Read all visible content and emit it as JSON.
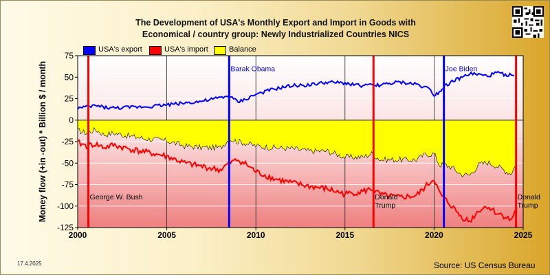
{
  "title_line1": "The Development of USA's Monthly Export and Import in Goods with",
  "title_line2": "Economical / country group: Newly Industrialized Countries NICS",
  "ylabel": "Money flow (+in -out) * Billion $ / month",
  "date_stamp": "17.4.2025",
  "source": "Source: US Census Bureau",
  "legend": [
    {
      "label": "USA's export",
      "color": "#0000ff"
    },
    {
      "label": "USA's import",
      "color": "#ff0000"
    },
    {
      "label": "Balance",
      "color": "#ffff00"
    }
  ],
  "chart_data": {
    "type": "area",
    "xlim": [
      2000,
      2025
    ],
    "ylim": [
      -125,
      75
    ],
    "x_ticks": [
      2000,
      2005,
      2010,
      2015,
      2020,
      2025
    ],
    "y_ticks": [
      75,
      50,
      25,
      0,
      -25,
      -50,
      -75,
      -100,
      -125
    ],
    "grid": true,
    "series": [
      {
        "name": "USA's export",
        "color": "#0000ff",
        "points": [
          [
            2000,
            14
          ],
          [
            2000.5,
            15
          ],
          [
            2001,
            17
          ],
          [
            2001.5,
            15
          ],
          [
            2002,
            14
          ],
          [
            2003,
            15
          ],
          [
            2004,
            16
          ],
          [
            2005,
            18
          ],
          [
            2006,
            20
          ],
          [
            2007,
            22
          ],
          [
            2008,
            26
          ],
          [
            2008.5,
            28
          ],
          [
            2009,
            21
          ],
          [
            2009.5,
            25
          ],
          [
            2010,
            30
          ],
          [
            2011,
            36
          ],
          [
            2012,
            40
          ],
          [
            2013,
            41
          ],
          [
            2014,
            44
          ],
          [
            2015,
            43
          ],
          [
            2016,
            40
          ],
          [
            2017,
            41
          ],
          [
            2018,
            44
          ],
          [
            2019,
            42
          ],
          [
            2019.8,
            36
          ],
          [
            2020,
            29
          ],
          [
            2020.3,
            33
          ],
          [
            2020.6,
            40
          ],
          [
            2021,
            45
          ],
          [
            2021.5,
            49
          ],
          [
            2022,
            54
          ],
          [
            2022.5,
            53
          ],
          [
            2023,
            51
          ],
          [
            2023.5,
            55
          ],
          [
            2024,
            53
          ],
          [
            2024.5,
            52
          ]
        ]
      },
      {
        "name": "USA's import",
        "color": "#ff0000",
        "points": [
          [
            2000,
            -26
          ],
          [
            2000.5,
            -30
          ],
          [
            2001,
            -28
          ],
          [
            2001.5,
            -32
          ],
          [
            2002,
            -29
          ],
          [
            2003,
            -34
          ],
          [
            2004,
            -38
          ],
          [
            2005,
            -42
          ],
          [
            2006,
            -50
          ],
          [
            2007,
            -54
          ],
          [
            2008,
            -58
          ],
          [
            2008.5,
            -50
          ],
          [
            2009,
            -46
          ],
          [
            2009.5,
            -52
          ],
          [
            2010,
            -60
          ],
          [
            2011,
            -68
          ],
          [
            2012,
            -73
          ],
          [
            2013,
            -77
          ],
          [
            2014,
            -80
          ],
          [
            2015,
            -86
          ],
          [
            2016,
            -83
          ],
          [
            2016.5,
            -80
          ],
          [
            2017,
            -87
          ],
          [
            2018,
            -90
          ],
          [
            2019,
            -88
          ],
          [
            2019.5,
            -78
          ],
          [
            2020,
            -68
          ],
          [
            2020.3,
            -85
          ],
          [
            2020.6,
            -92
          ],
          [
            2021,
            -100
          ],
          [
            2021.5,
            -112
          ],
          [
            2022,
            -118
          ],
          [
            2022.5,
            -105
          ],
          [
            2023,
            -100
          ],
          [
            2023.5,
            -108
          ],
          [
            2024,
            -112
          ],
          [
            2024.3,
            -117
          ],
          [
            2024.6,
            -104
          ]
        ]
      },
      {
        "name": "Balance",
        "color": "#ffff00",
        "points": [
          [
            2000,
            -12
          ],
          [
            2000.5,
            -15
          ],
          [
            2001,
            -11
          ],
          [
            2001.5,
            -17
          ],
          [
            2002,
            -15
          ],
          [
            2003,
            -19
          ],
          [
            2004,
            -22
          ],
          [
            2005,
            -24
          ],
          [
            2006,
            -30
          ],
          [
            2007,
            -32
          ],
          [
            2008,
            -32
          ],
          [
            2008.5,
            -22
          ],
          [
            2009,
            -25
          ],
          [
            2009.5,
            -27
          ],
          [
            2010,
            -30
          ],
          [
            2011,
            -32
          ],
          [
            2012,
            -33
          ],
          [
            2013,
            -36
          ],
          [
            2014,
            -36
          ],
          [
            2015,
            -43
          ],
          [
            2016,
            -43
          ],
          [
            2016.5,
            -39
          ],
          [
            2017,
            -46
          ],
          [
            2018,
            -46
          ],
          [
            2019,
            -46
          ],
          [
            2019.5,
            -40
          ],
          [
            2020,
            -39
          ],
          [
            2020.3,
            -52
          ],
          [
            2020.6,
            -52
          ],
          [
            2021,
            -55
          ],
          [
            2021.5,
            -63
          ],
          [
            2022,
            -64
          ],
          [
            2022.5,
            -52
          ],
          [
            2023,
            -49
          ],
          [
            2023.5,
            -53
          ],
          [
            2024,
            -59
          ],
          [
            2024.3,
            -62
          ],
          [
            2024.6,
            -52
          ]
        ]
      }
    ],
    "events": [
      {
        "year": 2000.6,
        "label": "George W. Bush",
        "color": "#ff0000",
        "label_level": -92
      },
      {
        "year": 2008.5,
        "label": "Barak Obama",
        "color": "#0000ff",
        "label_level": 57
      },
      {
        "year": 2016.6,
        "label": "Donald Trump",
        "color": "#ff0000",
        "label_level": -92
      },
      {
        "year": 2020.55,
        "label": "Joe Biden",
        "color": "#0000ff",
        "label_level": 57
      },
      {
        "year": 2024.6,
        "label": "Donald Trump",
        "color": "#ff0000",
        "label_level": -92
      }
    ]
  }
}
